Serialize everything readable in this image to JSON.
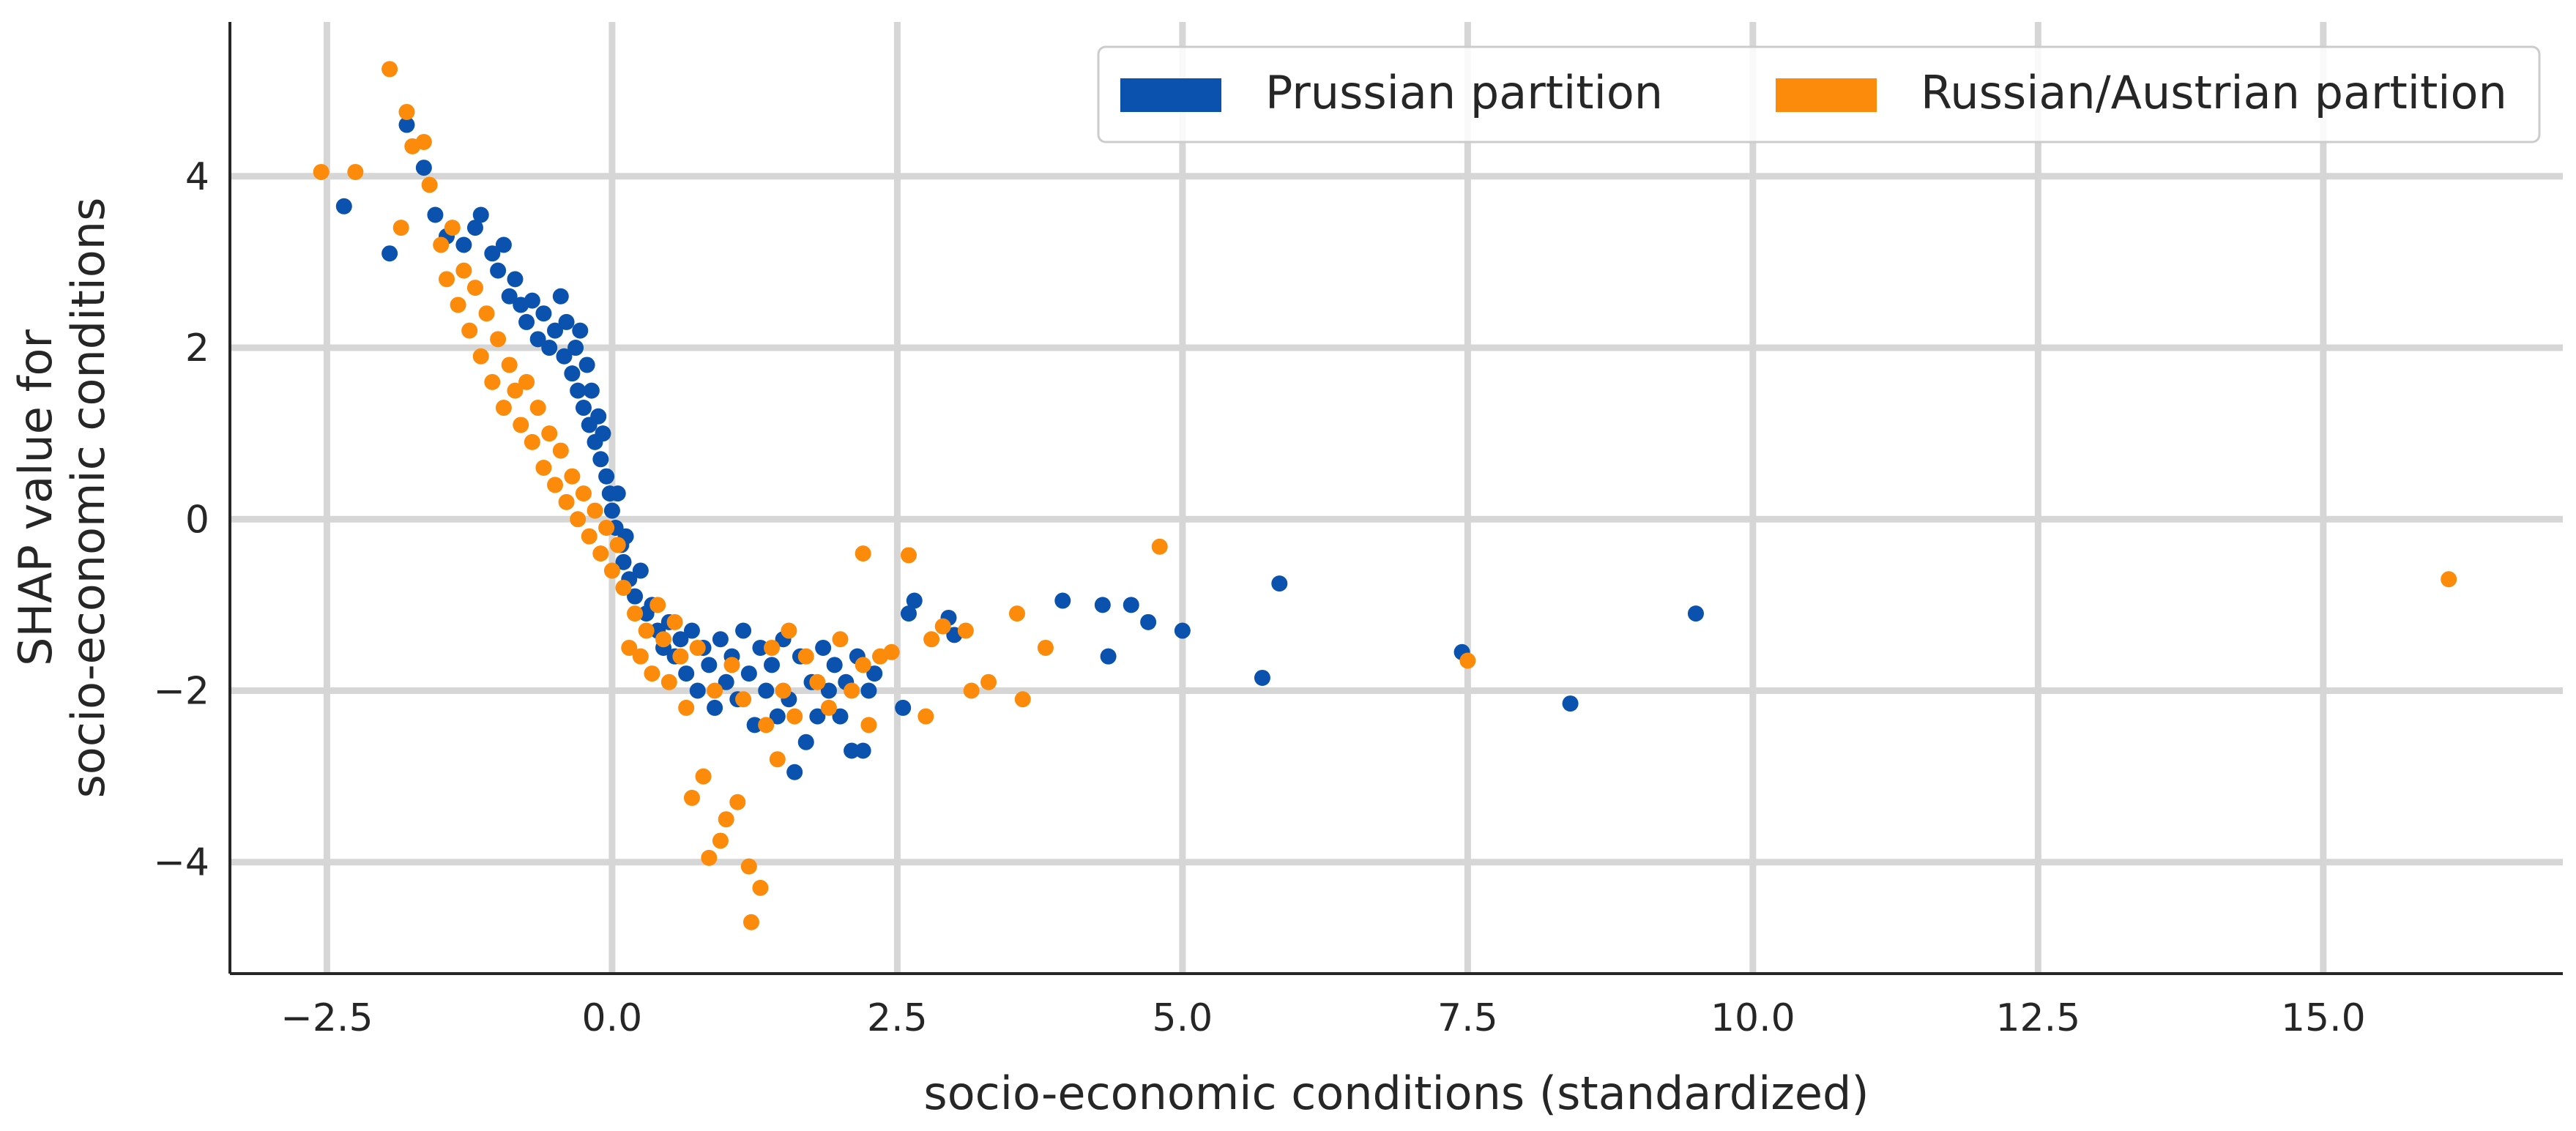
{
  "chart_data": {
    "type": "scatter",
    "title": "",
    "xlabel": "socio-economic conditions (standardized)",
    "ylabel_lines": [
      "SHAP value for",
      "socio-economic conditions"
    ],
    "xlim": [
      -3.35,
      17.1
    ],
    "ylim": [
      -5.3,
      5.8
    ],
    "x_ticks": [
      -2.5,
      0.0,
      2.5,
      5.0,
      7.5,
      10.0,
      12.5,
      15.0
    ],
    "x_tick_labels": [
      "−2.5",
      "0.0",
      "2.5",
      "5.0",
      "7.5",
      "10.0",
      "12.5",
      "15.0"
    ],
    "y_ticks": [
      -4,
      -2,
      0,
      2,
      4
    ],
    "y_tick_labels": [
      "−4",
      "−2",
      "0",
      "2",
      "4"
    ],
    "grid": true,
    "legend_position": "top-right",
    "series": [
      {
        "name": "Prussian partition",
        "color": "#0a52ad",
        "points": [
          [
            -2.35,
            3.65
          ],
          [
            -1.95,
            3.1
          ],
          [
            -1.8,
            4.6
          ],
          [
            -1.65,
            4.1
          ],
          [
            -1.55,
            3.55
          ],
          [
            -1.45,
            3.3
          ],
          [
            -1.3,
            3.2
          ],
          [
            -1.2,
            3.4
          ],
          [
            -1.15,
            3.55
          ],
          [
            -1.05,
            3.1
          ],
          [
            -1.0,
            2.9
          ],
          [
            -0.95,
            3.2
          ],
          [
            -0.9,
            2.6
          ],
          [
            -0.85,
            2.8
          ],
          [
            -0.8,
            2.5
          ],
          [
            -0.75,
            2.3
          ],
          [
            -0.7,
            2.55
          ],
          [
            -0.65,
            2.1
          ],
          [
            -0.6,
            2.4
          ],
          [
            -0.55,
            2.0
          ],
          [
            -0.5,
            2.2
          ],
          [
            -0.45,
            2.6
          ],
          [
            -0.42,
            1.9
          ],
          [
            -0.4,
            2.3
          ],
          [
            -0.35,
            1.7
          ],
          [
            -0.32,
            2.0
          ],
          [
            -0.3,
            1.5
          ],
          [
            -0.28,
            2.2
          ],
          [
            -0.25,
            1.3
          ],
          [
            -0.22,
            1.8
          ],
          [
            -0.2,
            1.1
          ],
          [
            -0.18,
            1.5
          ],
          [
            -0.15,
            0.9
          ],
          [
            -0.12,
            1.2
          ],
          [
            -0.1,
            0.7
          ],
          [
            -0.08,
            1.0
          ],
          [
            -0.05,
            0.5
          ],
          [
            -0.02,
            0.3
          ],
          [
            0.0,
            0.1
          ],
          [
            0.03,
            -0.1
          ],
          [
            0.05,
            0.3
          ],
          [
            0.08,
            -0.3
          ],
          [
            0.1,
            -0.5
          ],
          [
            0.12,
            -0.2
          ],
          [
            0.15,
            -0.7
          ],
          [
            0.2,
            -0.9
          ],
          [
            0.25,
            -0.6
          ],
          [
            0.3,
            -1.1
          ],
          [
            0.35,
            -1.0
          ],
          [
            0.4,
            -1.3
          ],
          [
            0.45,
            -1.5
          ],
          [
            0.5,
            -1.2
          ],
          [
            0.55,
            -1.6
          ],
          [
            0.6,
            -1.4
          ],
          [
            0.65,
            -1.8
          ],
          [
            0.7,
            -1.3
          ],
          [
            0.75,
            -2.0
          ],
          [
            0.8,
            -1.5
          ],
          [
            0.85,
            -1.7
          ],
          [
            0.9,
            -2.2
          ],
          [
            0.95,
            -1.4
          ],
          [
            1.0,
            -1.9
          ],
          [
            1.05,
            -1.6
          ],
          [
            1.1,
            -2.1
          ],
          [
            1.15,
            -1.3
          ],
          [
            1.2,
            -1.8
          ],
          [
            1.25,
            -2.4
          ],
          [
            1.3,
            -1.5
          ],
          [
            1.35,
            -2.0
          ],
          [
            1.4,
            -1.7
          ],
          [
            1.45,
            -2.3
          ],
          [
            1.5,
            -1.4
          ],
          [
            1.55,
            -2.1
          ],
          [
            1.6,
            -2.95
          ],
          [
            1.65,
            -1.6
          ],
          [
            1.7,
            -2.6
          ],
          [
            1.75,
            -1.9
          ],
          [
            1.8,
            -2.3
          ],
          [
            1.85,
            -1.5
          ],
          [
            1.9,
            -2.0
          ],
          [
            1.95,
            -1.7
          ],
          [
            2.0,
            -2.3
          ],
          [
            2.05,
            -1.9
          ],
          [
            2.1,
            -2.7
          ],
          [
            2.15,
            -1.6
          ],
          [
            2.2,
            -2.7
          ],
          [
            2.25,
            -2.0
          ],
          [
            2.3,
            -1.8
          ],
          [
            2.55,
            -2.2
          ],
          [
            2.6,
            -1.1
          ],
          [
            2.65,
            -0.95
          ],
          [
            2.95,
            -1.15
          ],
          [
            3.0,
            -1.35
          ],
          [
            3.95,
            -0.95
          ],
          [
            4.3,
            -1.0
          ],
          [
            4.35,
            -1.6
          ],
          [
            4.55,
            -1.0
          ],
          [
            4.7,
            -1.2
          ],
          [
            5.0,
            -1.3
          ],
          [
            5.7,
            -1.85
          ],
          [
            5.85,
            -0.75
          ],
          [
            7.45,
            -1.55
          ],
          [
            8.4,
            -2.15
          ],
          [
            9.5,
            -1.1
          ]
        ]
      },
      {
        "name": "Russian/Austrian partition",
        "color": "#fc8b0b",
        "points": [
          [
            -2.55,
            4.05
          ],
          [
            -2.25,
            4.05
          ],
          [
            -1.95,
            5.25
          ],
          [
            -1.85,
            3.4
          ],
          [
            -1.8,
            4.75
          ],
          [
            -1.75,
            4.35
          ],
          [
            -1.65,
            4.4
          ],
          [
            -1.6,
            3.9
          ],
          [
            -1.5,
            3.2
          ],
          [
            -1.45,
            2.8
          ],
          [
            -1.4,
            3.4
          ],
          [
            -1.35,
            2.5
          ],
          [
            -1.3,
            2.9
          ],
          [
            -1.25,
            2.2
          ],
          [
            -1.2,
            2.7
          ],
          [
            -1.15,
            1.9
          ],
          [
            -1.1,
            2.4
          ],
          [
            -1.05,
            1.6
          ],
          [
            -1.0,
            2.1
          ],
          [
            -0.95,
            1.3
          ],
          [
            -0.9,
            1.8
          ],
          [
            -0.85,
            1.5
          ],
          [
            -0.8,
            1.1
          ],
          [
            -0.75,
            1.6
          ],
          [
            -0.7,
            0.9
          ],
          [
            -0.65,
            1.3
          ],
          [
            -0.6,
            0.6
          ],
          [
            -0.55,
            1.0
          ],
          [
            -0.5,
            0.4
          ],
          [
            -0.45,
            0.8
          ],
          [
            -0.4,
            0.2
          ],
          [
            -0.35,
            0.5
          ],
          [
            -0.3,
            0.0
          ],
          [
            -0.25,
            0.3
          ],
          [
            -0.2,
            -0.2
          ],
          [
            -0.15,
            0.1
          ],
          [
            -0.1,
            -0.4
          ],
          [
            -0.05,
            -0.1
          ],
          [
            0.0,
            -0.6
          ],
          [
            0.05,
            -0.3
          ],
          [
            0.1,
            -0.8
          ],
          [
            0.15,
            -1.5
          ],
          [
            0.2,
            -1.1
          ],
          [
            0.25,
            -1.6
          ],
          [
            0.3,
            -1.3
          ],
          [
            0.35,
            -1.8
          ],
          [
            0.4,
            -1.0
          ],
          [
            0.45,
            -1.4
          ],
          [
            0.5,
            -1.9
          ],
          [
            0.55,
            -1.2
          ],
          [
            0.6,
            -1.6
          ],
          [
            0.65,
            -2.2
          ],
          [
            0.7,
            -3.25
          ],
          [
            0.75,
            -1.5
          ],
          [
            0.8,
            -3.0
          ],
          [
            0.85,
            -3.95
          ],
          [
            0.9,
            -2.0
          ],
          [
            0.95,
            -3.75
          ],
          [
            1.0,
            -3.5
          ],
          [
            1.05,
            -1.7
          ],
          [
            1.1,
            -3.3
          ],
          [
            1.15,
            -2.1
          ],
          [
            1.2,
            -4.05
          ],
          [
            1.22,
            -4.7
          ],
          [
            1.3,
            -4.3
          ],
          [
            1.35,
            -2.4
          ],
          [
            1.4,
            -1.5
          ],
          [
            1.45,
            -2.8
          ],
          [
            1.5,
            -2.0
          ],
          [
            1.55,
            -1.3
          ],
          [
            1.6,
            -2.3
          ],
          [
            1.7,
            -1.6
          ],
          [
            1.8,
            -1.9
          ],
          [
            1.9,
            -2.2
          ],
          [
            2.0,
            -1.4
          ],
          [
            2.1,
            -2.0
          ],
          [
            2.2,
            -1.7
          ],
          [
            2.25,
            -2.4
          ],
          [
            2.2,
            -0.4
          ],
          [
            2.35,
            -1.6
          ],
          [
            2.45,
            -1.55
          ],
          [
            2.6,
            -0.42
          ],
          [
            2.75,
            -2.3
          ],
          [
            2.8,
            -1.4
          ],
          [
            2.9,
            -1.25
          ],
          [
            3.1,
            -1.3
          ],
          [
            3.15,
            -2.0
          ],
          [
            3.3,
            -1.9
          ],
          [
            3.55,
            -1.1
          ],
          [
            3.6,
            -2.1
          ],
          [
            3.8,
            -1.5
          ],
          [
            4.8,
            -0.32
          ],
          [
            7.5,
            -1.65
          ],
          [
            16.1,
            -0.7
          ]
        ]
      }
    ]
  }
}
